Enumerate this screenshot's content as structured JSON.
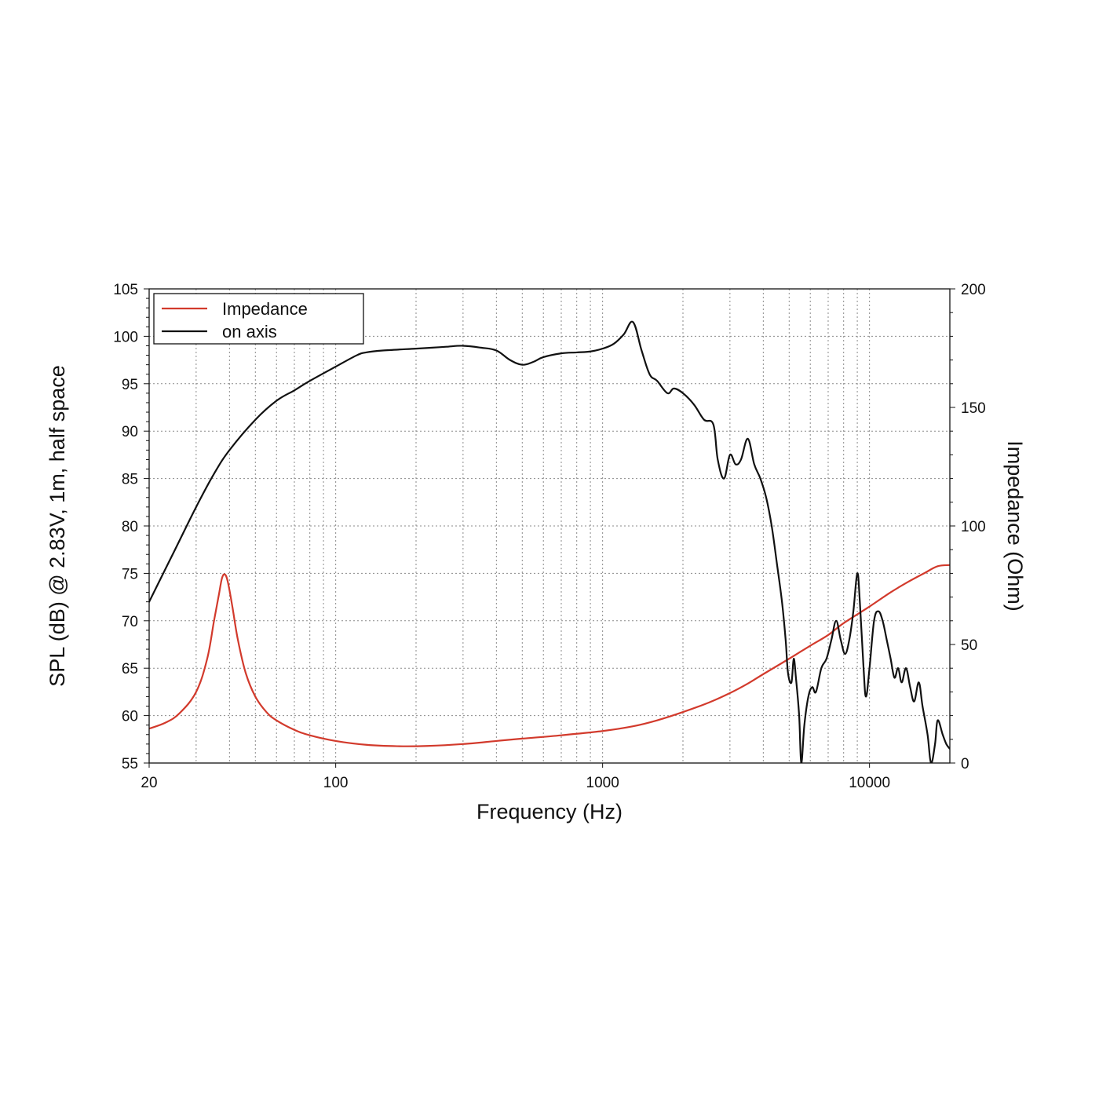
{
  "chart_data": {
    "type": "line",
    "xscale": "log",
    "xlim": [
      20,
      20000
    ],
    "ylim_left": [
      55,
      105
    ],
    "ylim_right": [
      0,
      200
    ],
    "grid": true,
    "legend_position": "top-left",
    "xlabel": "Frequency (Hz)",
    "ylabel_left": "SPL (dB) @ 2.83V, 1m, half space",
    "ylabel_right": "Impedance (Ohm)",
    "x_ticks": [
      "20",
      "100",
      "1000",
      "10000"
    ],
    "x_tick_values": [
      20,
      100,
      1000,
      10000
    ],
    "y_ticks_left": [
      55,
      60,
      65,
      70,
      75,
      80,
      85,
      90,
      95,
      100,
      105
    ],
    "y_ticks_right": [
      0,
      50,
      100,
      150,
      200
    ],
    "series": [
      {
        "name": "Impedance",
        "axis": "right",
        "color": "#d23a2c",
        "points": [
          [
            20,
            14.5
          ],
          [
            23,
            17
          ],
          [
            26,
            21
          ],
          [
            30,
            30
          ],
          [
            33,
            44
          ],
          [
            35,
            60
          ],
          [
            36.5,
            71
          ],
          [
            37.5,
            78
          ],
          [
            38.5,
            79.5
          ],
          [
            39.5,
            76
          ],
          [
            41,
            66
          ],
          [
            43,
            52
          ],
          [
            46,
            38
          ],
          [
            50,
            28
          ],
          [
            55,
            21.5
          ],
          [
            60,
            18
          ],
          [
            70,
            14
          ],
          [
            80,
            11.7
          ],
          [
            100,
            9.3
          ],
          [
            130,
            7.7
          ],
          [
            170,
            7.1
          ],
          [
            220,
            7.2
          ],
          [
            300,
            8
          ],
          [
            400,
            9.3
          ],
          [
            500,
            10.3
          ],
          [
            700,
            11.7
          ],
          [
            1000,
            13.5
          ],
          [
            1300,
            15.5
          ],
          [
            1600,
            18
          ],
          [
            2000,
            21.5
          ],
          [
            2500,
            25.5
          ],
          [
            3000,
            29.5
          ],
          [
            3500,
            33.5
          ],
          [
            4000,
            37.5
          ],
          [
            5000,
            44
          ],
          [
            6000,
            49.5
          ],
          [
            7000,
            54
          ],
          [
            8000,
            59
          ],
          [
            10000,
            66
          ],
          [
            12000,
            72
          ],
          [
            14000,
            76.5
          ],
          [
            16000,
            80
          ],
          [
            18000,
            83
          ],
          [
            20000,
            83.5
          ]
        ]
      },
      {
        "name": "on axis",
        "axis": "left",
        "color": "#111111",
        "points": [
          [
            20,
            72
          ],
          [
            25,
            77.5
          ],
          [
            30,
            82
          ],
          [
            35,
            85.5
          ],
          [
            40,
            88
          ],
          [
            50,
            91.2
          ],
          [
            60,
            93.2
          ],
          [
            70,
            94.3
          ],
          [
            80,
            95.3
          ],
          [
            100,
            96.8
          ],
          [
            120,
            98
          ],
          [
            130,
            98.3
          ],
          [
            150,
            98.5
          ],
          [
            200,
            98.7
          ],
          [
            230,
            98.8
          ],
          [
            260,
            98.9
          ],
          [
            300,
            99
          ],
          [
            350,
            98.8
          ],
          [
            400,
            98.5
          ],
          [
            450,
            97.5
          ],
          [
            500,
            97
          ],
          [
            550,
            97.3
          ],
          [
            600,
            97.8
          ],
          [
            700,
            98.2
          ],
          [
            800,
            98.3
          ],
          [
            900,
            98.4
          ],
          [
            1000,
            98.7
          ],
          [
            1100,
            99.2
          ],
          [
            1200,
            100.2
          ],
          [
            1300,
            101.5
          ],
          [
            1400,
            98.5
          ],
          [
            1500,
            96
          ],
          [
            1600,
            95.3
          ],
          [
            1750,
            94
          ],
          [
            1850,
            94.5
          ],
          [
            2000,
            94
          ],
          [
            2200,
            92.8
          ],
          [
            2400,
            91.2
          ],
          [
            2600,
            90.7
          ],
          [
            2700,
            87
          ],
          [
            2850,
            85
          ],
          [
            3000,
            87.5
          ],
          [
            3150,
            86.5
          ],
          [
            3300,
            87
          ],
          [
            3500,
            89.2
          ],
          [
            3700,
            86.5
          ],
          [
            3900,
            85
          ],
          [
            4100,
            83
          ],
          [
            4300,
            80
          ],
          [
            4500,
            76
          ],
          [
            4700,
            72
          ],
          [
            4850,
            68
          ],
          [
            4950,
            64.5
          ],
          [
            5100,
            63.5
          ],
          [
            5200,
            66
          ],
          [
            5300,
            64
          ],
          [
            5450,
            60
          ],
          [
            5550,
            55
          ],
          [
            5700,
            59
          ],
          [
            5900,
            62
          ],
          [
            6100,
            63
          ],
          [
            6300,
            62.5
          ],
          [
            6600,
            65
          ],
          [
            6900,
            66
          ],
          [
            7200,
            68
          ],
          [
            7500,
            70
          ],
          [
            7800,
            68
          ],
          [
            8100,
            66.5
          ],
          [
            8400,
            68
          ],
          [
            8700,
            71
          ],
          [
            9000,
            75
          ],
          [
            9200,
            72
          ],
          [
            9500,
            65
          ],
          [
            9700,
            62
          ],
          [
            10000,
            65
          ],
          [
            10400,
            70
          ],
          [
            10800,
            71
          ],
          [
            11200,
            70
          ],
          [
            11600,
            68
          ],
          [
            12000,
            66
          ],
          [
            12400,
            64
          ],
          [
            12800,
            65
          ],
          [
            13200,
            63.5
          ],
          [
            13700,
            65
          ],
          [
            14200,
            63
          ],
          [
            14700,
            61.5
          ],
          [
            15300,
            63.5
          ],
          [
            15800,
            61
          ],
          [
            16500,
            58
          ],
          [
            17000,
            55
          ],
          [
            17600,
            57
          ],
          [
            18000,
            59.5
          ],
          [
            18800,
            58
          ],
          [
            19400,
            57
          ],
          [
            20000,
            56.5
          ]
        ]
      }
    ]
  }
}
